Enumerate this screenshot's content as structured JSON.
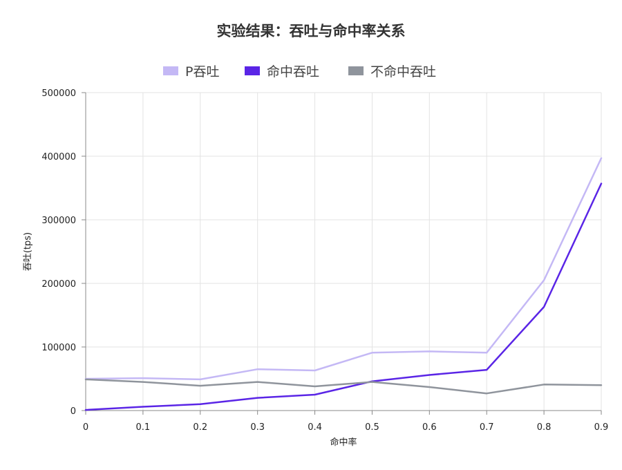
{
  "chart_data": {
    "type": "line",
    "title": "实验结果：吞吐与命中率关系",
    "xlabel": "命中率",
    "ylabel": "吞吐(tps)",
    "x": [
      0,
      0.1,
      0.2,
      0.3,
      0.4,
      0.5,
      0.6,
      0.7,
      0.8,
      0.9
    ],
    "x_tick_labels": [
      "0",
      "0.1",
      "0.2",
      "0.3",
      "0.4",
      "0.5",
      "0.6",
      "0.7",
      "0.8",
      "0.9"
    ],
    "ylim": [
      0,
      500000
    ],
    "y_ticks": [
      0,
      100000,
      200000,
      300000,
      400000,
      500000
    ],
    "y_tick_labels": [
      "0",
      "100000",
      "200000",
      "300000",
      "400000",
      "500000"
    ],
    "grid": true,
    "legend_position": "top-center",
    "series": [
      {
        "name": "P吞吐",
        "color": "#c4b8f5",
        "values": [
          50000,
          51000,
          49000,
          65000,
          63000,
          91000,
          93000,
          91000,
          205000,
          397000
        ]
      },
      {
        "name": "命中吞吐",
        "color": "#5a25e6",
        "values": [
          1000,
          6000,
          10000,
          20000,
          25000,
          46000,
          56000,
          64000,
          163000,
          357000
        ]
      },
      {
        "name": "不命中吞吐",
        "color": "#8f949c",
        "values": [
          49000,
          45000,
          39000,
          45000,
          38000,
          45000,
          37000,
          27000,
          41000,
          40000
        ]
      }
    ]
  }
}
